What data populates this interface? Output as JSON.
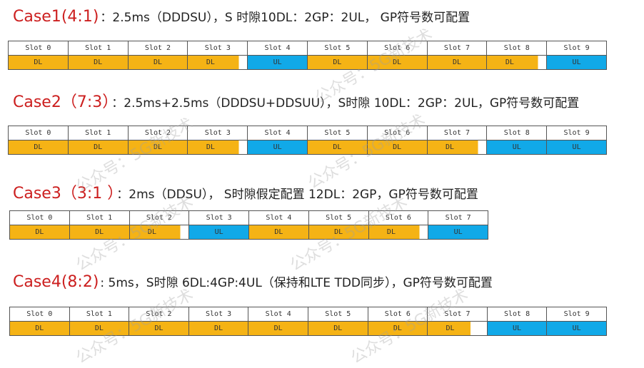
{
  "cases": [
    {
      "id": "Case1(4:1)",
      "desc": "：2.5ms（DDDSU），S 时隙10DL：2GP：2UL， GP符号数可配置",
      "slots": [
        "Slot 0",
        "Slot 1",
        "Slot 2",
        "Slot 3",
        "Slot 4",
        "Slot 5",
        "Slot 6",
        "Slot 7",
        "Slot 8",
        "Slot 9"
      ],
      "types": [
        "DL",
        "DL",
        "DL",
        "S",
        "UL",
        "DL",
        "DL",
        "DL",
        "S",
        "UL"
      ],
      "labels": [
        "DL",
        "DL",
        "DL",
        "DL",
        "UL",
        "DL",
        "DL",
        "DL",
        "DL",
        "UL"
      ]
    },
    {
      "id": "Case2（7:3）",
      "desc": "：2.5ms+2.5ms（DDDSU+DDSUU），S时隙 10DL：2GP：2UL，GP符号数可配置",
      "slots": [
        "Slot 0",
        "Slot 1",
        "Slot 2",
        "Slot 3",
        "Slot 4",
        "Slot 5",
        "Slot 6",
        "Slot 7",
        "Slot 8",
        "Slot 9"
      ],
      "types": [
        "DL",
        "DL",
        "DL",
        "S",
        "UL",
        "DL",
        "DL",
        "S",
        "UL",
        "UL"
      ],
      "labels": [
        "DL",
        "DL",
        "DL",
        "DL",
        "UL",
        "DL",
        "DL",
        "DL",
        "UL",
        "UL"
      ]
    },
    {
      "id": "Case3（3:1 ）",
      "desc": "：2ms（DDSU）， S时隙假定配置 12DL：2GP，GP符号数可配置",
      "slots": [
        "Slot 0",
        "Slot 1",
        "Slot 2",
        "Slot 3",
        "Slot 4",
        "Slot 5",
        "Slot 6",
        "Slot 7"
      ],
      "types": [
        "DL",
        "DL",
        "S",
        "UL",
        "DL",
        "DL",
        "S",
        "UL"
      ],
      "labels": [
        "DL",
        "DL",
        "DL",
        "UL",
        "DL",
        "DL",
        "DL",
        "UL"
      ]
    },
    {
      "id": "Case4(8:2)",
      "desc": ": 5ms，S时隙 6DL:4GP:4UL（保持和LTE TDD同步），GP符号数可配置",
      "slots": [
        "Slot 0",
        "Slot 1",
        "Slot 2",
        "Slot 3",
        "Slot 4",
        "Slot 5",
        "Slot 6",
        "Slot 7",
        "Slot 8",
        "Slot 9"
      ],
      "types": [
        "DL",
        "DL",
        "DL",
        "DL",
        "DL",
        "DL",
        "DL",
        "S",
        "UL",
        "UL"
      ],
      "labels": [
        "DL",
        "DL",
        "DL",
        "DL",
        "DL",
        "DL",
        "DL",
        "DL",
        "UL",
        "UL"
      ]
    }
  ],
  "watermark": "公众号：5G新技术",
  "colors": {
    "dl": "#f5b315",
    "ul": "#11a9e8",
    "case_title": "#cc1f1f"
  }
}
